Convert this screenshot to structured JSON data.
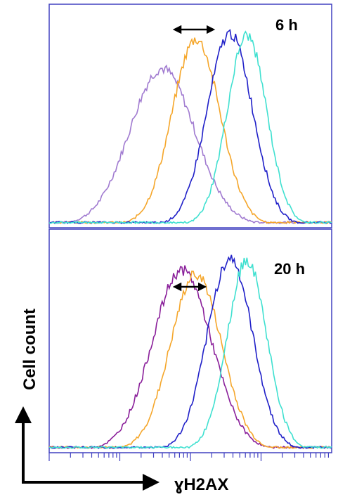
{
  "chart_data": {
    "type": "line",
    "xlabel": "ɣH2AX",
    "ylabel": "Cell count",
    "x_scale": "log",
    "grid": false,
    "legend": "none",
    "colors": {
      "purple_6h": "#a07ad0",
      "purple_20h": "#8a1f9a",
      "orange": "#f5a62a",
      "blue": "#1f1fc8",
      "cyan": "#3fe0d0",
      "frame": "#4040c0"
    },
    "panels": [
      {
        "label": "6 h",
        "series": [
          {
            "color_key": "purple_6h",
            "peak": 0.4,
            "width": 0.115,
            "height": 0.8
          },
          {
            "color_key": "orange",
            "peak": 0.52,
            "width": 0.085,
            "height": 0.95
          },
          {
            "color_key": "blue",
            "peak": 0.64,
            "width": 0.08,
            "height": 0.98
          },
          {
            "color_key": "cyan",
            "peak": 0.7,
            "width": 0.07,
            "height": 0.97
          }
        ]
      },
      {
        "label": "20 h",
        "series": [
          {
            "color_key": "purple_20h",
            "peak": 0.47,
            "width": 0.105,
            "height": 0.92
          },
          {
            "color_key": "orange",
            "peak": 0.52,
            "width": 0.09,
            "height": 0.9
          },
          {
            "color_key": "blue",
            "peak": 0.64,
            "width": 0.08,
            "height": 0.98
          },
          {
            "color_key": "cyan",
            "peak": 0.7,
            "width": 0.07,
            "height": 0.97
          }
        ]
      }
    ]
  }
}
